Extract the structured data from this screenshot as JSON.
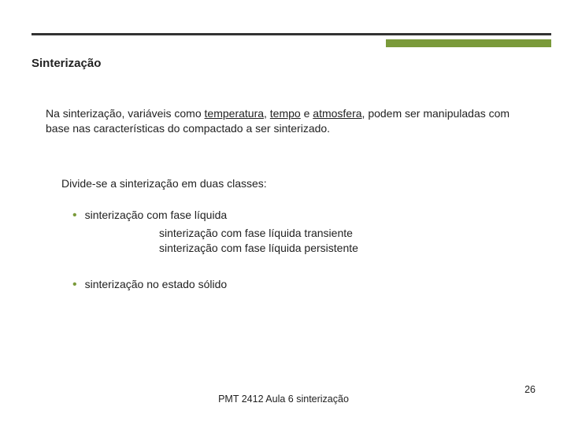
{
  "colors": {
    "rule": "#333333",
    "accent": "#7a9a3a",
    "text": "#222222",
    "background": "#ffffff"
  },
  "title": "Sinterização",
  "paragraph": {
    "pre": "Na sinterização, variáveis como ",
    "u1": "temperatura",
    "sep1": ", ",
    "u2": "tempo",
    "sep2": " e ",
    "u3": "atmosfera",
    "post": ", podem ser manipuladas com base nas características do compactado a ser sinterizado."
  },
  "intro2": "Divide-se a sinterização em duas classes:",
  "bullets": [
    {
      "text": "sinterização com fase líquida",
      "subs": [
        "sinterização com fase líquida transiente",
        "sinterização com fase líquida persistente"
      ]
    },
    {
      "text": "sinterização no estado sólido",
      "subs": []
    }
  ],
  "footer": "PMT 2412 Aula 6 sinterização",
  "page_number": "26",
  "typography": {
    "title_fontsize_pt": 15,
    "body_fontsize_pt": 14,
    "footer_fontsize_pt": 12.5,
    "font_family": "Verdana"
  }
}
